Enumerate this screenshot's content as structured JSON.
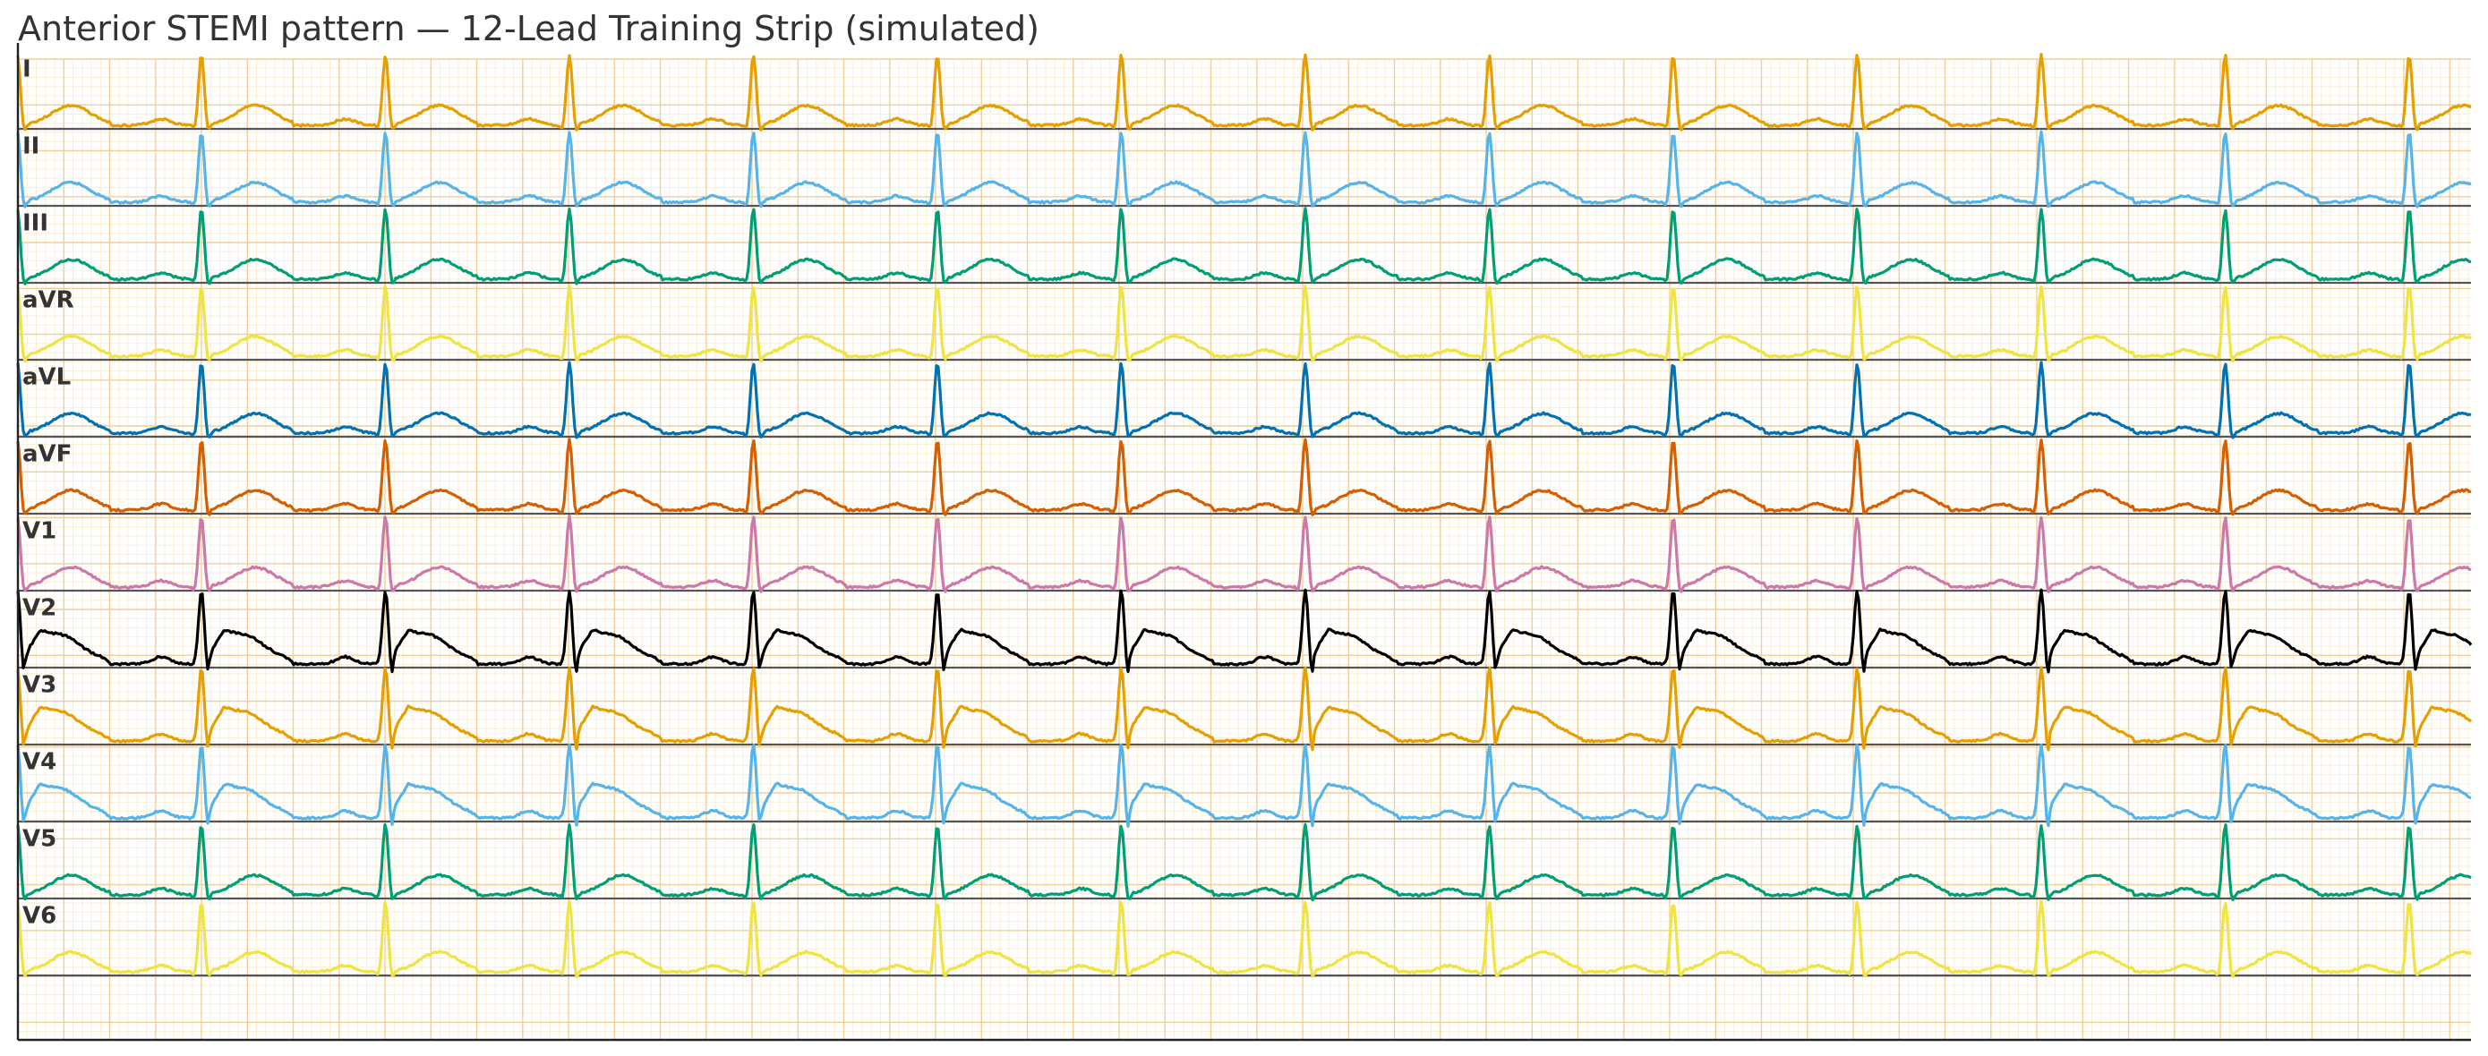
{
  "title": "Anterior STEMI pattern — 12-Lead Training Strip (simulated)",
  "chart_data": {
    "type": "line",
    "title": "Anterior STEMI pattern — 12-Lead Training Strip (simulated)",
    "xlabel": "",
    "ylabel": "",
    "grid": true,
    "legend": "none",
    "beat_count": 14,
    "beats_visible": 13,
    "grid_colors": {
      "minor": "#fbeed6",
      "major": "#f3cf97",
      "baseline": "#555555",
      "axis": "#222222"
    },
    "leads": [
      {
        "name": "I",
        "color": "#E69F00",
        "morphology": "normal"
      },
      {
        "name": "II",
        "color": "#56B4E9",
        "morphology": "normal"
      },
      {
        "name": "III",
        "color": "#009E73",
        "morphology": "normal"
      },
      {
        "name": "aVR",
        "color": "#F0E442",
        "morphology": "normal"
      },
      {
        "name": "aVL",
        "color": "#0072B2",
        "morphology": "normal"
      },
      {
        "name": "aVF",
        "color": "#D55E00",
        "morphology": "normal"
      },
      {
        "name": "V1",
        "color": "#CC79A7",
        "morphology": "normal"
      },
      {
        "name": "V2",
        "color": "#000000",
        "morphology": "st-elevation"
      },
      {
        "name": "V3",
        "color": "#E69F00",
        "morphology": "st-elevation"
      },
      {
        "name": "V4",
        "color": "#56B4E9",
        "morphology": "st-elevation"
      },
      {
        "name": "V5",
        "color": "#009E73",
        "morphology": "normal"
      },
      {
        "name": "V6",
        "color": "#F0E442",
        "morphology": "normal"
      }
    ]
  }
}
